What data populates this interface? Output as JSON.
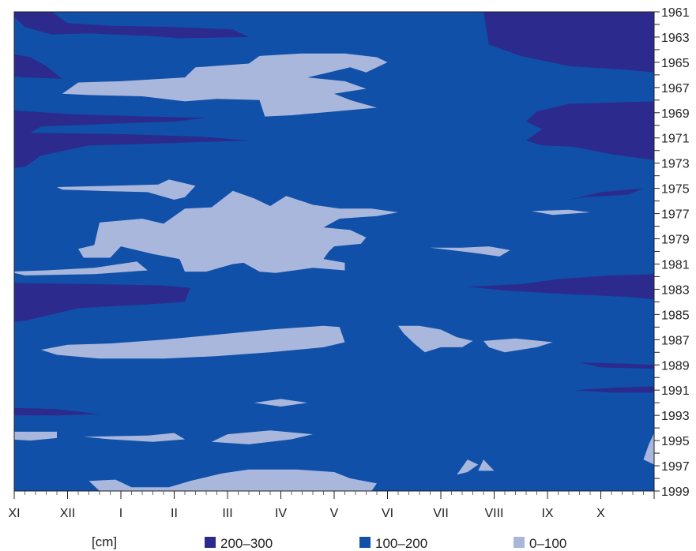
{
  "chart_data": {
    "type": "heatmap",
    "title": "",
    "xlabel": "",
    "ylabel": "",
    "unit_label": "[cm]",
    "x_categories": [
      "XI",
      "XII",
      "I",
      "II",
      "III",
      "IV",
      "V",
      "VI",
      "VII",
      "VIII",
      "IX",
      "X"
    ],
    "y_tick_labels": [
      "1961",
      "1963",
      "1965",
      "1967",
      "1969",
      "1971",
      "1973",
      "1975",
      "1977",
      "1979",
      "1981",
      "1983",
      "1985",
      "1987",
      "1989",
      "1991",
      "1993",
      "1995",
      "1997",
      "1999"
    ],
    "y_range": [
      1961,
      1999
    ],
    "y_axis_side": "right",
    "grid": false,
    "legend_position": "bottom",
    "classes": [
      {
        "label": "200–300",
        "color": "#2c2a8c"
      },
      {
        "label": "100–200",
        "color": "#1050a8"
      },
      {
        "label": "0–100",
        "color": "#a9b7dc"
      }
    ],
    "regions": [
      {
        "class": "200–300",
        "points": [
          [
            -0.1,
            1961.0
          ],
          [
            0.2,
            1962.2
          ],
          [
            0.7,
            1962.8
          ],
          [
            1.4,
            1962.7
          ],
          [
            2.5,
            1962.9
          ],
          [
            3.1,
            1963.1
          ],
          [
            4.4,
            1963.0
          ],
          [
            4.1,
            1962.4
          ],
          [
            3.0,
            1962.2
          ],
          [
            1.8,
            1962.1
          ],
          [
            1.0,
            1961.9
          ],
          [
            0.7,
            1961.0
          ]
        ]
      },
      {
        "class": "200–300",
        "points": [
          [
            8.8,
            1961.0
          ],
          [
            8.9,
            1963.6
          ],
          [
            9.5,
            1964.5
          ],
          [
            10.4,
            1965.3
          ],
          [
            11.5,
            1965.6
          ],
          [
            12.0,
            1965.8
          ],
          [
            12.0,
            1961.0
          ]
        ]
      },
      {
        "class": "200–300",
        "points": [
          [
            -0.1,
            1964.3
          ],
          [
            0.3,
            1964.6
          ],
          [
            0.6,
            1965.3
          ],
          [
            0.9,
            1966.3
          ],
          [
            0.2,
            1966.2
          ],
          [
            -0.1,
            1966.1
          ]
        ]
      },
      {
        "class": "200–300",
        "points": [
          [
            -0.1,
            1968.8
          ],
          [
            1.0,
            1969.1
          ],
          [
            2.5,
            1969.3
          ],
          [
            3.6,
            1969.4
          ],
          [
            3.0,
            1969.7
          ],
          [
            1.6,
            1969.9
          ],
          [
            0.5,
            1970.1
          ],
          [
            0.3,
            1970.6
          ],
          [
            2.0,
            1970.7
          ],
          [
            3.5,
            1970.9
          ],
          [
            4.4,
            1971.2
          ],
          [
            3.0,
            1971.4
          ],
          [
            1.4,
            1971.6
          ],
          [
            0.5,
            1972.4
          ],
          [
            0.2,
            1973.3
          ],
          [
            -0.1,
            1973.4
          ]
        ]
      },
      {
        "class": "200–300",
        "points": [
          [
            12.0,
            1968.1
          ],
          [
            11.2,
            1968.2
          ],
          [
            10.4,
            1968.3
          ],
          [
            9.8,
            1968.9
          ],
          [
            9.6,
            1969.7
          ],
          [
            9.9,
            1970.3
          ],
          [
            9.6,
            1971.2
          ],
          [
            9.9,
            1971.6
          ],
          [
            10.5,
            1971.7
          ],
          [
            11.2,
            1972.3
          ],
          [
            11.9,
            1972.7
          ],
          [
            12.0,
            1972.8
          ]
        ]
      },
      {
        "class": "200–300",
        "points": [
          [
            11.8,
            1975.0
          ],
          [
            11.0,
            1975.3
          ],
          [
            10.4,
            1975.9
          ],
          [
            10.7,
            1975.7
          ],
          [
            11.5,
            1975.5
          ]
        ]
      },
      {
        "class": "200–300",
        "points": [
          [
            12.0,
            1981.8
          ],
          [
            11.2,
            1981.9
          ],
          [
            10.2,
            1982.2
          ],
          [
            9.5,
            1982.6
          ],
          [
            8.5,
            1982.8
          ],
          [
            9.2,
            1983.1
          ],
          [
            10.4,
            1983.4
          ],
          [
            11.5,
            1983.6
          ],
          [
            12.0,
            1983.8
          ]
        ]
      },
      {
        "class": "200–300",
        "points": [
          [
            -0.1,
            1982.5
          ],
          [
            1.5,
            1982.6
          ],
          [
            2.8,
            1982.7
          ],
          [
            3.3,
            1982.9
          ],
          [
            3.2,
            1984.0
          ],
          [
            2.5,
            1984.2
          ],
          [
            1.2,
            1984.5
          ],
          [
            0.2,
            1985.5
          ],
          [
            -0.1,
            1985.6
          ]
        ]
      },
      {
        "class": "200–300",
        "points": [
          [
            10.6,
            1988.8
          ],
          [
            11.5,
            1988.9
          ],
          [
            12.0,
            1989.0
          ],
          [
            12.0,
            1989.3
          ],
          [
            11.0,
            1989.2
          ]
        ]
      },
      {
        "class": "200–300",
        "points": [
          [
            10.5,
            1991.0
          ],
          [
            11.3,
            1990.8
          ],
          [
            12.0,
            1990.7
          ],
          [
            12.0,
            1991.2
          ],
          [
            11.2,
            1991.2
          ]
        ]
      },
      {
        "class": "200–300",
        "points": [
          [
            -0.1,
            1992.4
          ],
          [
            0.8,
            1992.5
          ],
          [
            1.6,
            1992.9
          ],
          [
            0.8,
            1993.0
          ],
          [
            -0.1,
            1993.0
          ]
        ]
      },
      {
        "class": "0–100",
        "points": [
          [
            1.2,
            1966.6
          ],
          [
            2.0,
            1966.5
          ],
          [
            3.2,
            1966.2
          ],
          [
            3.4,
            1965.4
          ],
          [
            4.4,
            1965.1
          ],
          [
            4.6,
            1964.5
          ],
          [
            5.4,
            1964.3
          ],
          [
            6.2,
            1964.3
          ],
          [
            6.8,
            1964.6
          ],
          [
            7.0,
            1965.0
          ],
          [
            6.6,
            1965.8
          ],
          [
            6.3,
            1965.4
          ],
          [
            5.9,
            1965.8
          ],
          [
            5.5,
            1966.2
          ],
          [
            6.2,
            1966.5
          ],
          [
            6.6,
            1967.1
          ],
          [
            6.0,
            1967.5
          ],
          [
            6.3,
            1968.0
          ],
          [
            6.8,
            1968.6
          ],
          [
            6.0,
            1968.9
          ],
          [
            5.2,
            1969.2
          ],
          [
            4.7,
            1969.3
          ],
          [
            4.6,
            1968.0
          ],
          [
            3.8,
            1967.9
          ],
          [
            3.2,
            1968.1
          ],
          [
            2.4,
            1967.7
          ],
          [
            1.4,
            1967.6
          ],
          [
            0.9,
            1967.5
          ]
        ]
      },
      {
        "class": "0–100",
        "points": [
          [
            0.8,
            1974.9
          ],
          [
            1.8,
            1974.8
          ],
          [
            2.7,
            1974.7
          ],
          [
            2.9,
            1974.3
          ],
          [
            3.4,
            1974.8
          ],
          [
            3.2,
            1975.7
          ],
          [
            3.0,
            1975.9
          ],
          [
            2.5,
            1975.3
          ],
          [
            1.6,
            1975.2
          ],
          [
            0.9,
            1975.1
          ]
        ]
      },
      {
        "class": "0–100",
        "points": [
          [
            1.5,
            1979.5
          ],
          [
            1.6,
            1977.7
          ],
          [
            2.4,
            1977.4
          ],
          [
            2.8,
            1977.8
          ],
          [
            3.2,
            1976.6
          ],
          [
            3.7,
            1976.5
          ],
          [
            4.1,
            1975.2
          ],
          [
            4.5,
            1975.8
          ],
          [
            4.8,
            1976.4
          ],
          [
            5.1,
            1975.6
          ],
          [
            5.6,
            1976.3
          ],
          [
            6.1,
            1976.6
          ],
          [
            6.7,
            1976.6
          ],
          [
            7.2,
            1976.9
          ],
          [
            6.8,
            1977.2
          ],
          [
            6.1,
            1977.4
          ],
          [
            5.8,
            1978.1
          ],
          [
            6.3,
            1978.3
          ],
          [
            6.6,
            1978.9
          ],
          [
            6.5,
            1979.4
          ],
          [
            6.0,
            1979.6
          ],
          [
            5.9,
            1980.0
          ],
          [
            5.8,
            1980.6
          ],
          [
            6.2,
            1980.9
          ],
          [
            6.2,
            1981.5
          ],
          [
            5.6,
            1981.3
          ],
          [
            4.9,
            1981.7
          ],
          [
            4.6,
            1981.6
          ],
          [
            4.3,
            1980.9
          ],
          [
            4.1,
            1981.0
          ],
          [
            3.6,
            1981.6
          ],
          [
            3.2,
            1981.6
          ],
          [
            3.1,
            1980.6
          ],
          [
            2.6,
            1980.2
          ],
          [
            2.0,
            1979.6
          ],
          [
            1.8,
            1980.5
          ],
          [
            1.3,
            1980.5
          ],
          [
            1.2,
            1979.8
          ]
        ]
      },
      {
        "class": "0–100",
        "points": [
          [
            -0.1,
            1981.6
          ],
          [
            0.6,
            1981.5
          ],
          [
            1.5,
            1981.3
          ],
          [
            2.3,
            1980.8
          ],
          [
            2.5,
            1981.5
          ],
          [
            1.5,
            1981.8
          ],
          [
            0.2,
            1981.9
          ]
        ]
      },
      {
        "class": "0–100",
        "points": [
          [
            0.5,
            1987.8
          ],
          [
            1.0,
            1987.4
          ],
          [
            1.8,
            1987.3
          ],
          [
            2.8,
            1987.0
          ],
          [
            3.8,
            1986.6
          ],
          [
            4.8,
            1986.2
          ],
          [
            5.8,
            1985.9
          ],
          [
            6.1,
            1986.0
          ],
          [
            6.2,
            1987.2
          ],
          [
            5.8,
            1987.6
          ],
          [
            4.8,
            1988.0
          ],
          [
            3.8,
            1988.3
          ],
          [
            2.8,
            1988.5
          ],
          [
            1.6,
            1988.5
          ],
          [
            0.8,
            1988.2
          ]
        ]
      },
      {
        "class": "0–100",
        "points": [
          [
            7.2,
            1985.9
          ],
          [
            7.6,
            1985.9
          ],
          [
            8.0,
            1986.2
          ],
          [
            8.3,
            1986.8
          ],
          [
            8.6,
            1987.1
          ],
          [
            8.4,
            1987.6
          ],
          [
            8.0,
            1987.6
          ],
          [
            7.7,
            1988.0
          ],
          [
            7.5,
            1987.3
          ],
          [
            7.3,
            1986.5
          ]
        ]
      },
      {
        "class": "0–100",
        "points": [
          [
            8.8,
            1987.1
          ],
          [
            9.4,
            1986.9
          ],
          [
            10.1,
            1987.2
          ],
          [
            9.8,
            1987.6
          ],
          [
            9.2,
            1988.0
          ],
          [
            8.9,
            1987.6
          ]
        ]
      },
      {
        "class": "0–100",
        "points": [
          [
            7.8,
            1979.7
          ],
          [
            8.4,
            1979.7
          ],
          [
            8.9,
            1979.6
          ],
          [
            9.3,
            1979.9
          ],
          [
            9.1,
            1980.4
          ],
          [
            8.6,
            1980.1
          ]
        ]
      },
      {
        "class": "0–100",
        "points": [
          [
            9.7,
            1976.8
          ],
          [
            10.4,
            1976.7
          ],
          [
            10.8,
            1976.9
          ],
          [
            10.1,
            1977.1
          ]
        ]
      },
      {
        "class": "0–100",
        "points": [
          [
            -0.1,
            1994.3
          ],
          [
            0.8,
            1994.3
          ],
          [
            0.8,
            1994.8
          ],
          [
            0.3,
            1995.0
          ],
          [
            -0.1,
            1994.9
          ]
        ]
      },
      {
        "class": "0–100",
        "points": [
          [
            1.3,
            1994.7
          ],
          [
            2.5,
            1994.6
          ],
          [
            3.0,
            1994.4
          ],
          [
            3.2,
            1994.9
          ],
          [
            2.6,
            1995.1
          ],
          [
            1.8,
            1994.9
          ]
        ]
      },
      {
        "class": "0–100",
        "points": [
          [
            3.7,
            1995.1
          ],
          [
            4.0,
            1994.5
          ],
          [
            4.8,
            1994.2
          ],
          [
            5.6,
            1994.5
          ],
          [
            5.2,
            1994.9
          ],
          [
            4.4,
            1995.3
          ]
        ]
      },
      {
        "class": "0–100",
        "points": [
          [
            4.5,
            1992.0
          ],
          [
            5.0,
            1991.7
          ],
          [
            5.5,
            1992.0
          ],
          [
            5.0,
            1992.3
          ]
        ]
      },
      {
        "class": "0–100",
        "points": [
          [
            1.6,
            1999.0
          ],
          [
            1.4,
            1998.2
          ],
          [
            1.9,
            1998.1
          ],
          [
            2.2,
            1998.7
          ],
          [
            2.9,
            1998.7
          ],
          [
            3.3,
            1998.2
          ],
          [
            3.9,
            1997.6
          ],
          [
            4.4,
            1997.3
          ],
          [
            5.3,
            1997.3
          ],
          [
            6.0,
            1997.5
          ],
          [
            6.3,
            1998.0
          ],
          [
            6.8,
            1998.4
          ],
          [
            6.7,
            1999.0
          ]
        ]
      },
      {
        "class": "0–100",
        "points": [
          [
            8.3,
            1997.7
          ],
          [
            8.5,
            1996.5
          ],
          [
            8.7,
            1996.9
          ],
          [
            8.5,
            1997.5
          ]
        ]
      },
      {
        "class": "0–100",
        "points": [
          [
            8.8,
            1996.5
          ],
          [
            9.0,
            1997.4
          ],
          [
            8.7,
            1997.4
          ]
        ]
      },
      {
        "class": "0–100",
        "points": [
          [
            11.8,
            1996.5
          ],
          [
            11.9,
            1995.3
          ],
          [
            12.0,
            1994.4
          ],
          [
            12.0,
            1996.9
          ]
        ]
      }
    ]
  }
}
